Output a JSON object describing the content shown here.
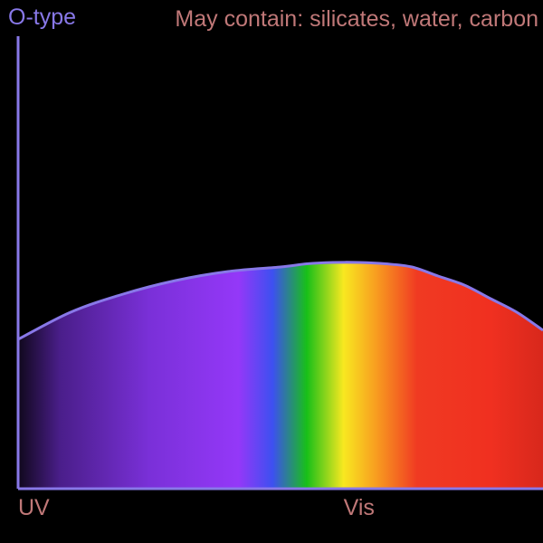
{
  "title": "O-type",
  "subtitle": "May contain: silicates, water, carbon",
  "colors": {
    "background": "#000000",
    "axis": "#8878e8",
    "title": "#8878e8",
    "subtitle": "#c07878",
    "tick_label": "#c07878"
  },
  "chart_data": {
    "type": "area",
    "title": "O-type",
    "xlabel": "",
    "ylabel": "",
    "x_ticks": [
      {
        "label": "UV",
        "at": 0.0
      },
      {
        "label": "Vis",
        "at": 0.62
      }
    ],
    "xlim": [
      0,
      1
    ],
    "ylim": [
      0,
      1
    ],
    "grid": false,
    "legend": "none",
    "curve": {
      "x": [
        0.0,
        0.1,
        0.2,
        0.3,
        0.4,
        0.5,
        0.55,
        0.6,
        0.65,
        0.7,
        0.75,
        0.8,
        0.85,
        0.9,
        0.95,
        1.0
      ],
      "y": [
        0.33,
        0.39,
        0.43,
        0.46,
        0.48,
        0.49,
        0.497,
        0.5,
        0.5,
        0.497,
        0.49,
        0.47,
        0.45,
        0.42,
        0.39,
        0.35
      ]
    },
    "spectrum_fill": [
      {
        "offset": 0.0,
        "color": "#10081c"
      },
      {
        "offset": 0.08,
        "color": "#4a1e8a"
      },
      {
        "offset": 0.25,
        "color": "#7a30d8"
      },
      {
        "offset": 0.42,
        "color": "#9438f8"
      },
      {
        "offset": 0.485,
        "color": "#3d50f0"
      },
      {
        "offset": 0.55,
        "color": "#18c018"
      },
      {
        "offset": 0.62,
        "color": "#f8e820"
      },
      {
        "offset": 0.68,
        "color": "#f8a020"
      },
      {
        "offset": 0.76,
        "color": "#f03a22"
      },
      {
        "offset": 0.9,
        "color": "#f03020"
      },
      {
        "offset": 1.0,
        "color": "#d8281c"
      }
    ]
  }
}
